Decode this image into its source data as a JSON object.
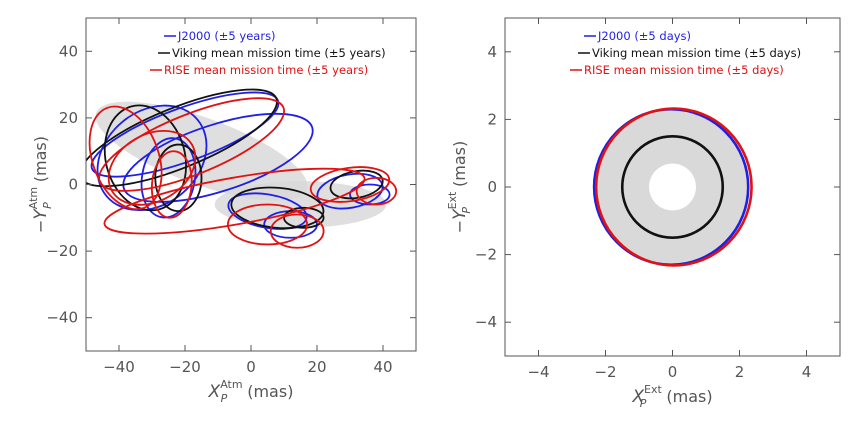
{
  "colors": {
    "blue": "#1f1fe6",
    "black": "#111111",
    "red": "#e01212",
    "band": "#d9d9d9",
    "axis": "#555555"
  },
  "chart_data": [
    {
      "type": "line",
      "title": "",
      "xlabel": {
        "base": "X",
        "sub": "P",
        "sup": "Atm",
        "unit": "(mas)"
      },
      "ylabel": {
        "prefix": "−",
        "base": "Y",
        "sub": "P",
        "sup": "Atm",
        "unit": "(mas)"
      },
      "xlim": [
        -50,
        50
      ],
      "ylim": [
        -50,
        50
      ],
      "xticks": [
        -40,
        -20,
        0,
        20,
        40
      ],
      "yticks": [
        -40,
        -20,
        0,
        20,
        40
      ],
      "xtick_labels": [
        "−40",
        "−20",
        "0",
        "20",
        "40"
      ],
      "ytick_labels": [
        "−40",
        "−20",
        "0",
        "20",
        "40"
      ],
      "grid": false,
      "legend_position": "top-right",
      "series": [
        {
          "name": "J2000 (±5 years)",
          "color": "blue"
        },
        {
          "name": "Viking mean mission time (±5 years)",
          "color": "black"
        },
        {
          "name": "RISE mean mission time (±5 years)",
          "color": "red"
        }
      ],
      "loops": [
        {
          "cx": -20,
          "cy": 15,
          "rx": 30,
          "ry": 8,
          "rot": -20,
          "color": "blue"
        },
        {
          "cx": -30,
          "cy": 8,
          "rx": 18,
          "ry": 14,
          "rot": -40,
          "color": "blue"
        },
        {
          "cx": -10,
          "cy": 8,
          "rx": 30,
          "ry": 10,
          "rot": -18,
          "color": "blue"
        },
        {
          "cx": -25,
          "cy": 2,
          "rx": 8,
          "ry": 12,
          "rot": 10,
          "color": "blue"
        },
        {
          "cx": 5,
          "cy": -8,
          "rx": 12,
          "ry": 5,
          "rot": 10,
          "color": "blue"
        },
        {
          "cx": 12,
          "cy": -12,
          "rx": 8,
          "ry": 4,
          "rot": 0,
          "color": "blue"
        },
        {
          "cx": 30,
          "cy": -2,
          "rx": 10,
          "ry": 5,
          "rot": -10,
          "color": "blue"
        },
        {
          "cx": 36,
          "cy": -3,
          "rx": 6,
          "ry": 3,
          "rot": 0,
          "color": "blue"
        },
        {
          "cx": -22,
          "cy": 14,
          "rx": 32,
          "ry": 9,
          "rot": -22,
          "color": "black"
        },
        {
          "cx": -32,
          "cy": 8,
          "rx": 12,
          "ry": 16,
          "rot": -15,
          "color": "black"
        },
        {
          "cx": -22,
          "cy": 2,
          "rx": 7,
          "ry": 10,
          "rot": 0,
          "color": "black"
        },
        {
          "cx": 8,
          "cy": -7,
          "rx": 14,
          "ry": 6,
          "rot": 5,
          "color": "black"
        },
        {
          "cx": 16,
          "cy": -10,
          "rx": 6,
          "ry": 3,
          "rot": 0,
          "color": "black"
        },
        {
          "cx": 32,
          "cy": 0,
          "rx": 8,
          "ry": 4,
          "rot": -10,
          "color": "black"
        },
        {
          "cx": -18,
          "cy": 12,
          "rx": 30,
          "ry": 9,
          "rot": -22,
          "color": "red"
        },
        {
          "cx": -38,
          "cy": 8,
          "rx": 10,
          "ry": 16,
          "rot": -20,
          "color": "red"
        },
        {
          "cx": -30,
          "cy": 5,
          "rx": 14,
          "ry": 10,
          "rot": -30,
          "color": "red"
        },
        {
          "cx": -24,
          "cy": 0,
          "rx": 6,
          "ry": 10,
          "rot": 5,
          "color": "red"
        },
        {
          "cx": -5,
          "cy": -5,
          "rx": 40,
          "ry": 7,
          "rot": -10,
          "color": "red"
        },
        {
          "cx": 5,
          "cy": -12,
          "rx": 12,
          "ry": 6,
          "rot": 0,
          "color": "red"
        },
        {
          "cx": 14,
          "cy": -14,
          "rx": 8,
          "ry": 5,
          "rot": 0,
          "color": "red"
        },
        {
          "cx": 30,
          "cy": 0,
          "rx": 12,
          "ry": 5,
          "rot": -8,
          "color": "red"
        },
        {
          "cx": 38,
          "cy": -2,
          "rx": 6,
          "ry": 4,
          "rot": 0,
          "color": "red"
        }
      ]
    },
    {
      "type": "line",
      "title": "",
      "xlabel": {
        "base": "X",
        "sub": "P",
        "sup": "Ext",
        "unit": "(mas)"
      },
      "ylabel": {
        "prefix": "−",
        "base": "Y",
        "sub": "P",
        "sup": "Ext",
        "unit": "(mas)"
      },
      "xlim": [
        -5,
        5
      ],
      "ylim": [
        -5,
        5
      ],
      "xticks": [
        -4,
        -2,
        0,
        2,
        4
      ],
      "yticks": [
        -4,
        -2,
        0,
        2,
        4
      ],
      "xtick_labels": [
        "−4",
        "−2",
        "0",
        "2",
        "4"
      ],
      "ytick_labels": [
        "−4",
        "−2",
        "0",
        "2",
        "4"
      ],
      "grid": false,
      "legend_position": "top-right",
      "series": [
        {
          "name": "J2000 (±5 days)",
          "color": "blue"
        },
        {
          "name": "Viking mean mission time (±5 days)",
          "color": "black"
        },
        {
          "name": "RISE mean mission time (±5 days)",
          "color": "red"
        }
      ],
      "band": {
        "inner_radius": 0.7,
        "outer_radius": 2.3
      },
      "circles": [
        {
          "color": "blue",
          "cx": -0.04,
          "cy": 0,
          "r": 2.3
        },
        {
          "color": "black",
          "cx": 0,
          "cy": 0,
          "r": 1.5
        },
        {
          "color": "red",
          "cx": 0.04,
          "cy": 0,
          "r": 2.32
        }
      ]
    }
  ]
}
